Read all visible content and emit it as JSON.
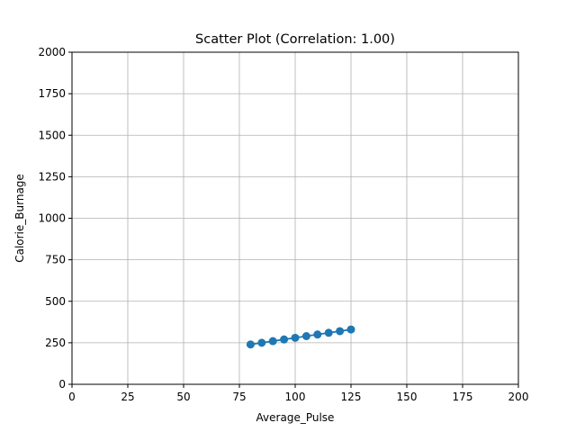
{
  "chart_data": {
    "type": "scatter",
    "title": "Scatter Plot (Correlation: 1.00)",
    "xlabel": "Average_Pulse",
    "ylabel": "Calorie_Burnage",
    "xlim": [
      0,
      200
    ],
    "ylim": [
      0,
      2000
    ],
    "xticks": [
      0,
      25,
      50,
      75,
      100,
      125,
      150,
      175,
      200
    ],
    "yticks": [
      0,
      250,
      500,
      750,
      1000,
      1250,
      1500,
      1750,
      2000
    ],
    "grid": true,
    "series": [
      {
        "color": "#1f77b4",
        "connected": true,
        "x": [
          80,
          85,
          90,
          95,
          100,
          105,
          110,
          115,
          120,
          125
        ],
        "y": [
          240,
          250,
          260,
          270,
          280,
          290,
          300,
          310,
          320,
          330
        ]
      }
    ]
  }
}
